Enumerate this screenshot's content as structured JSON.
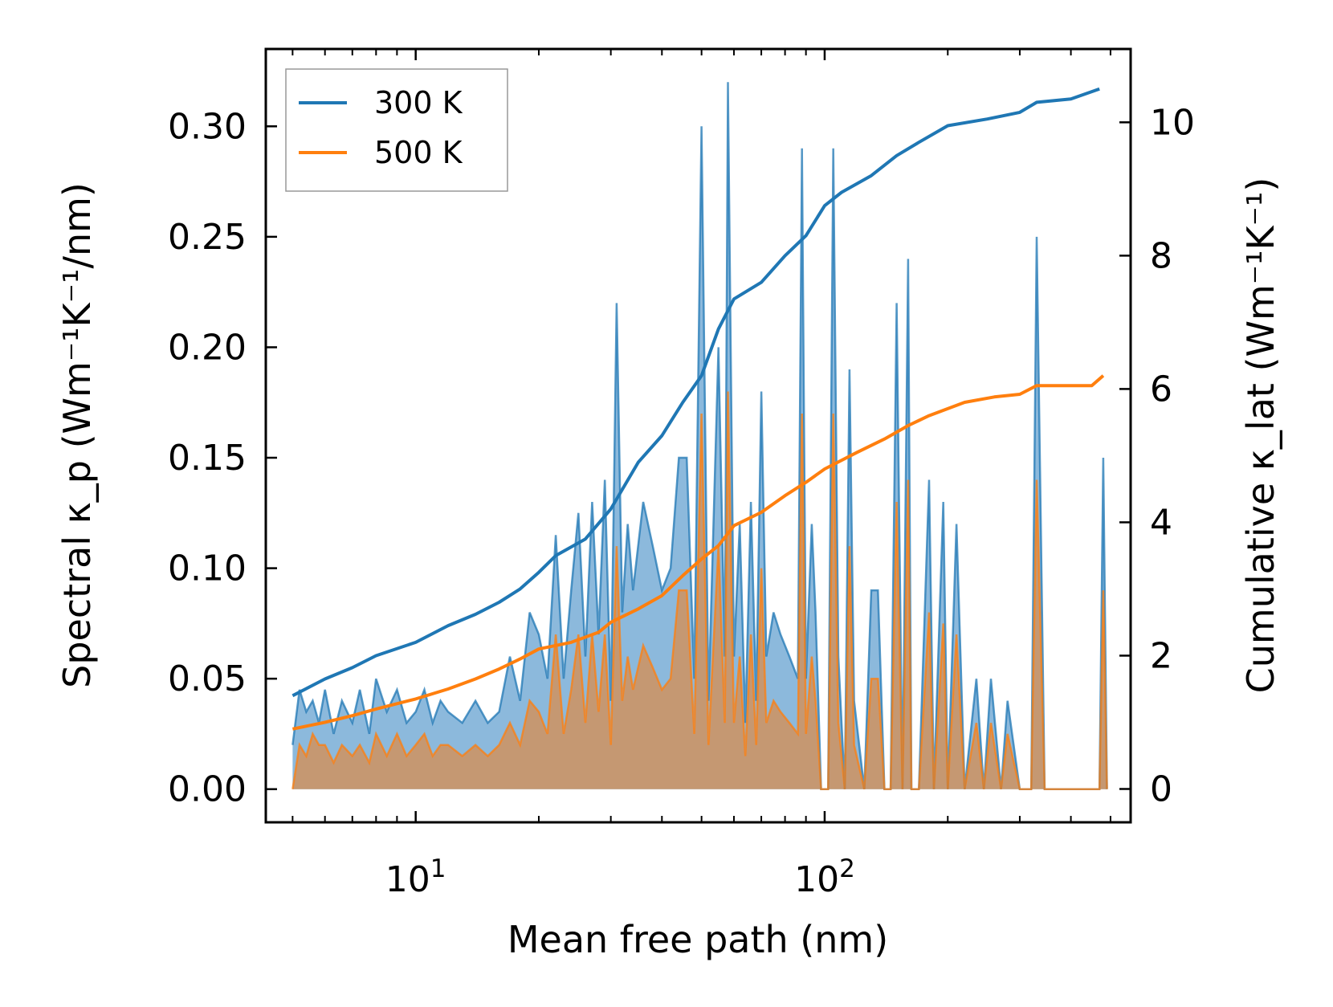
{
  "chart_data": {
    "type": "line",
    "x_scale": "log",
    "xlabel": "Mean free path (nm)",
    "ylabel_left": "Spectral κ_p (Wm⁻¹K⁻¹/nm)",
    "ylabel_right": "Cumulative κ_lat (Wm⁻¹K⁻¹)",
    "xlim": [
      4.3,
      560
    ],
    "ylim_left": [
      -0.015,
      0.335
    ],
    "ylim_right": [
      -0.5,
      11.1
    ],
    "x_ticks": [
      {
        "value": 10,
        "base": "10",
        "exp": "1"
      },
      {
        "value": 100,
        "base": "10",
        "exp": "2"
      }
    ],
    "y_ticks_left": [
      {
        "value": 0.0,
        "label": "0.00"
      },
      {
        "value": 0.05,
        "label": "0.05"
      },
      {
        "value": 0.1,
        "label": "0.10"
      },
      {
        "value": 0.15,
        "label": "0.15"
      },
      {
        "value": 0.2,
        "label": "0.20"
      },
      {
        "value": 0.25,
        "label": "0.25"
      },
      {
        "value": 0.3,
        "label": "0.30"
      }
    ],
    "y_ticks_right": [
      {
        "value": 0,
        "label": "0"
      },
      {
        "value": 2,
        "label": "2"
      },
      {
        "value": 4,
        "label": "4"
      },
      {
        "value": 6,
        "label": "6"
      },
      {
        "value": 8,
        "label": "8"
      },
      {
        "value": 10,
        "label": "10"
      }
    ],
    "legend": {
      "position": "upper-left",
      "entries": [
        "300 K",
        "500 K"
      ]
    },
    "colors": {
      "s300": "#1f77b4",
      "s500": "#ff7f0e",
      "fill300": "#7fb1d8",
      "fill500": "#c8966b",
      "axis": "#000000"
    },
    "series": [
      {
        "name": "300 K",
        "cumulative": [
          [
            5,
            1.4
          ],
          [
            6,
            1.65
          ],
          [
            7,
            1.82
          ],
          [
            8,
            2.0
          ],
          [
            10,
            2.2
          ],
          [
            12,
            2.45
          ],
          [
            14,
            2.62
          ],
          [
            16,
            2.8
          ],
          [
            18,
            3.0
          ],
          [
            20,
            3.25
          ],
          [
            22,
            3.5
          ],
          [
            26,
            3.75
          ],
          [
            30,
            4.2
          ],
          [
            35,
            4.9
          ],
          [
            40,
            5.3
          ],
          [
            45,
            5.8
          ],
          [
            50,
            6.2
          ],
          [
            55,
            6.9
          ],
          [
            60,
            7.35
          ],
          [
            70,
            7.6
          ],
          [
            80,
            8.0
          ],
          [
            90,
            8.3
          ],
          [
            100,
            8.75
          ],
          [
            110,
            8.95
          ],
          [
            130,
            9.2
          ],
          [
            150,
            9.5
          ],
          [
            170,
            9.7
          ],
          [
            200,
            9.95
          ],
          [
            250,
            10.05
          ],
          [
            300,
            10.15
          ],
          [
            330,
            10.3
          ],
          [
            400,
            10.35
          ],
          [
            470,
            10.5
          ]
        ],
        "spectral": [
          [
            5,
            0.02
          ],
          [
            5.2,
            0.045
          ],
          [
            5.4,
            0.035
          ],
          [
            5.6,
            0.04
          ],
          [
            5.8,
            0.03
          ],
          [
            6.0,
            0.045
          ],
          [
            6.3,
            0.025
          ],
          [
            6.6,
            0.04
          ],
          [
            7.0,
            0.03
          ],
          [
            7.3,
            0.045
          ],
          [
            7.7,
            0.025
          ],
          [
            8.0,
            0.05
          ],
          [
            8.5,
            0.035
          ],
          [
            9,
            0.045
          ],
          [
            9.5,
            0.03
          ],
          [
            10,
            0.035
          ],
          [
            10.5,
            0.045
          ],
          [
            11,
            0.03
          ],
          [
            11.5,
            0.04
          ],
          [
            12,
            0.035
          ],
          [
            13,
            0.03
          ],
          [
            14,
            0.04
          ],
          [
            15,
            0.03
          ],
          [
            16,
            0.035
          ],
          [
            17,
            0.06
          ],
          [
            18,
            0.04
          ],
          [
            19,
            0.08
          ],
          [
            20,
            0.07
          ],
          [
            21,
            0.05
          ],
          [
            22,
            0.115
          ],
          [
            23,
            0.05
          ],
          [
            24,
            0.09
          ],
          [
            25,
            0.125
          ],
          [
            26,
            0.06
          ],
          [
            27,
            0.13
          ],
          [
            28,
            0.07
          ],
          [
            29,
            0.14
          ],
          [
            30,
            0.04
          ],
          [
            31,
            0.22
          ],
          [
            32,
            0.08
          ],
          [
            33,
            0.12
          ],
          [
            34,
            0.09
          ],
          [
            36,
            0.13
          ],
          [
            38,
            0.11
          ],
          [
            40,
            0.09
          ],
          [
            42,
            0.1
          ],
          [
            44,
            0.15
          ],
          [
            46,
            0.15
          ],
          [
            48,
            0.05
          ],
          [
            50,
            0.3
          ],
          [
            52,
            0.04
          ],
          [
            55,
            0.2
          ],
          [
            57,
            0.06
          ],
          [
            58,
            0.32
          ],
          [
            60,
            0.06
          ],
          [
            62,
            0.12
          ],
          [
            64,
            0.03
          ],
          [
            66,
            0.13
          ],
          [
            68,
            0.04
          ],
          [
            70,
            0.18
          ],
          [
            72,
            0.06
          ],
          [
            75,
            0.08
          ],
          [
            78,
            0.07
          ],
          [
            82,
            0.06
          ],
          [
            86,
            0.05
          ],
          [
            88,
            0.29
          ],
          [
            90,
            0.05
          ],
          [
            93,
            0.12
          ],
          [
            95,
            0.08
          ],
          [
            98,
            0.0
          ],
          [
            102,
            0.0
          ],
          [
            105,
            0.29
          ],
          [
            108,
            0.06
          ],
          [
            112,
            0.0
          ],
          [
            115,
            0.19
          ],
          [
            118,
            0.04
          ],
          [
            125,
            0.0
          ],
          [
            130,
            0.09
          ],
          [
            135,
            0.09
          ],
          [
            140,
            0.0
          ],
          [
            145,
            0.0
          ],
          [
            150,
            0.22
          ],
          [
            155,
            0.0
          ],
          [
            160,
            0.24
          ],
          [
            163,
            0.0
          ],
          [
            170,
            0.0
          ],
          [
            180,
            0.14
          ],
          [
            185,
            0.0
          ],
          [
            195,
            0.13
          ],
          [
            200,
            0.0
          ],
          [
            210,
            0.12
          ],
          [
            220,
            0.0
          ],
          [
            235,
            0.05
          ],
          [
            245,
            0.0
          ],
          [
            255,
            0.05
          ],
          [
            270,
            0.0
          ],
          [
            280,
            0.04
          ],
          [
            300,
            0.0
          ],
          [
            320,
            0.0
          ],
          [
            330,
            0.25
          ],
          [
            345,
            0.0
          ],
          [
            470,
            0.0
          ],
          [
            480,
            0.15
          ],
          [
            490,
            0.0
          ]
        ]
      },
      {
        "name": "500 K",
        "cumulative": [
          [
            5,
            0.9
          ],
          [
            6,
            1.0
          ],
          [
            7,
            1.1
          ],
          [
            8,
            1.2
          ],
          [
            10,
            1.35
          ],
          [
            12,
            1.5
          ],
          [
            14,
            1.65
          ],
          [
            16,
            1.8
          ],
          [
            18,
            1.95
          ],
          [
            20,
            2.1
          ],
          [
            24,
            2.2
          ],
          [
            28,
            2.35
          ],
          [
            30,
            2.5
          ],
          [
            35,
            2.7
          ],
          [
            40,
            2.9
          ],
          [
            45,
            3.2
          ],
          [
            50,
            3.45
          ],
          [
            55,
            3.65
          ],
          [
            60,
            3.95
          ],
          [
            70,
            4.15
          ],
          [
            80,
            4.4
          ],
          [
            90,
            4.6
          ],
          [
            100,
            4.8
          ],
          [
            120,
            5.05
          ],
          [
            140,
            5.25
          ],
          [
            160,
            5.45
          ],
          [
            180,
            5.6
          ],
          [
            220,
            5.8
          ],
          [
            260,
            5.88
          ],
          [
            300,
            5.92
          ],
          [
            330,
            6.05
          ],
          [
            450,
            6.05
          ],
          [
            480,
            6.2
          ]
        ],
        "spectral": [
          [
            5,
            0.0
          ],
          [
            5.2,
            0.02
          ],
          [
            5.4,
            0.015
          ],
          [
            5.6,
            0.025
          ],
          [
            5.8,
            0.02
          ],
          [
            6.0,
            0.02
          ],
          [
            6.3,
            0.012
          ],
          [
            6.6,
            0.02
          ],
          [
            7.0,
            0.015
          ],
          [
            7.3,
            0.02
          ],
          [
            7.7,
            0.012
          ],
          [
            8.0,
            0.025
          ],
          [
            8.5,
            0.015
          ],
          [
            9,
            0.025
          ],
          [
            9.5,
            0.015
          ],
          [
            10,
            0.02
          ],
          [
            10.5,
            0.025
          ],
          [
            11,
            0.015
          ],
          [
            11.5,
            0.02
          ],
          [
            12,
            0.02
          ],
          [
            13,
            0.015
          ],
          [
            14,
            0.02
          ],
          [
            15,
            0.015
          ],
          [
            16,
            0.02
          ],
          [
            17,
            0.03
          ],
          [
            18,
            0.02
          ],
          [
            19,
            0.04
          ],
          [
            20,
            0.035
          ],
          [
            21,
            0.025
          ],
          [
            22,
            0.07
          ],
          [
            23,
            0.025
          ],
          [
            24,
            0.045
          ],
          [
            25,
            0.07
          ],
          [
            26,
            0.03
          ],
          [
            27,
            0.07
          ],
          [
            28,
            0.035
          ],
          [
            29,
            0.07
          ],
          [
            30,
            0.02
          ],
          [
            31,
            0.11
          ],
          [
            32,
            0.04
          ],
          [
            33,
            0.06
          ],
          [
            34,
            0.045
          ],
          [
            36,
            0.065
          ],
          [
            38,
            0.055
          ],
          [
            40,
            0.045
          ],
          [
            42,
            0.05
          ],
          [
            44,
            0.09
          ],
          [
            46,
            0.09
          ],
          [
            48,
            0.025
          ],
          [
            50,
            0.17
          ],
          [
            52,
            0.02
          ],
          [
            55,
            0.11
          ],
          [
            57,
            0.03
          ],
          [
            58,
            0.18
          ],
          [
            60,
            0.03
          ],
          [
            62,
            0.06
          ],
          [
            64,
            0.015
          ],
          [
            66,
            0.07
          ],
          [
            68,
            0.02
          ],
          [
            70,
            0.1
          ],
          [
            72,
            0.03
          ],
          [
            75,
            0.04
          ],
          [
            78,
            0.035
          ],
          [
            82,
            0.03
          ],
          [
            86,
            0.025
          ],
          [
            88,
            0.17
          ],
          [
            90,
            0.025
          ],
          [
            93,
            0.06
          ],
          [
            95,
            0.04
          ],
          [
            98,
            0.0
          ],
          [
            102,
            0.0
          ],
          [
            105,
            0.17
          ],
          [
            108,
            0.03
          ],
          [
            112,
            0.0
          ],
          [
            115,
            0.11
          ],
          [
            118,
            0.02
          ],
          [
            125,
            0.0
          ],
          [
            130,
            0.05
          ],
          [
            135,
            0.05
          ],
          [
            140,
            0.0
          ],
          [
            145,
            0.0
          ],
          [
            150,
            0.13
          ],
          [
            155,
            0.0
          ],
          [
            160,
            0.14
          ],
          [
            163,
            0.0
          ],
          [
            170,
            0.0
          ],
          [
            180,
            0.08
          ],
          [
            185,
            0.0
          ],
          [
            195,
            0.075
          ],
          [
            200,
            0.0
          ],
          [
            210,
            0.07
          ],
          [
            220,
            0.0
          ],
          [
            235,
            0.03
          ],
          [
            245,
            0.0
          ],
          [
            255,
            0.03
          ],
          [
            270,
            0.0
          ],
          [
            280,
            0.025
          ],
          [
            300,
            0.0
          ],
          [
            320,
            0.0
          ],
          [
            330,
            0.14
          ],
          [
            345,
            0.0
          ],
          [
            470,
            0.0
          ],
          [
            480,
            0.09
          ],
          [
            490,
            0.0
          ]
        ]
      }
    ]
  }
}
